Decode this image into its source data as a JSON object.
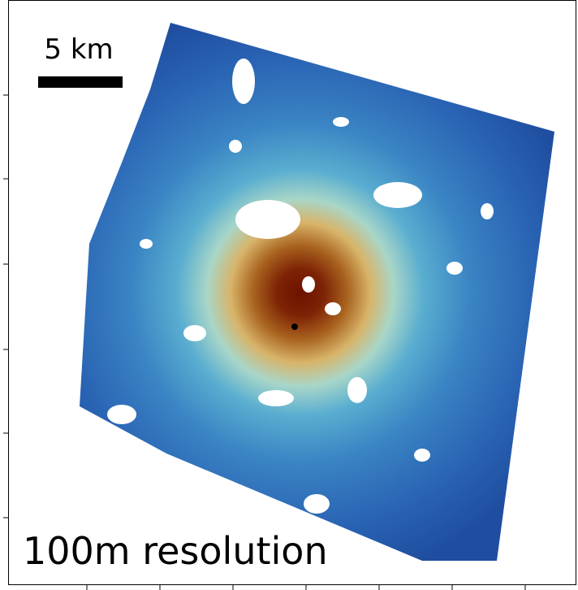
{
  "scale_bar": {
    "label": "5 km"
  },
  "caption": "100m resolution"
}
